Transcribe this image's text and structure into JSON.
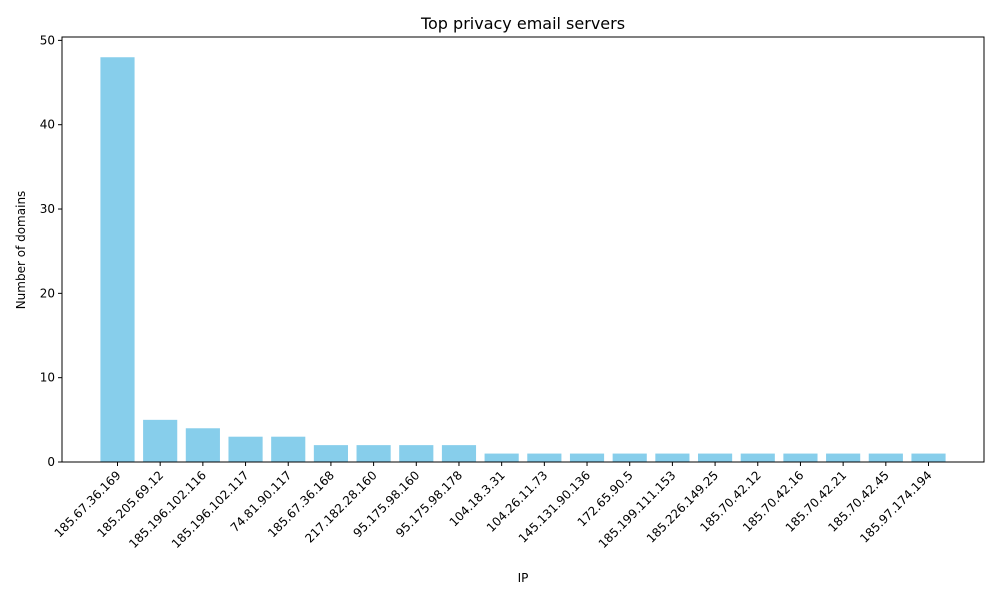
{
  "chart_data": {
    "type": "bar",
    "title": "Top privacy email servers",
    "xlabel": "IP",
    "ylabel": "Number of domains",
    "categories": [
      "185.67.36.169",
      "185.205.69.12",
      "185.196.102.116",
      "185.196.102.117",
      "74.81.90.117",
      "185.67.36.168",
      "217.182.28.160",
      "95.175.98.160",
      "95.175.98.178",
      "104.18.3.31",
      "104.26.11.73",
      "145.131.90.136",
      "172.65.90.5",
      "185.199.111.153",
      "185.226.149.25",
      "185.70.42.12",
      "185.70.42.16",
      "185.70.42.21",
      "185.70.42.45",
      "185.97.174.194"
    ],
    "values": [
      48,
      5,
      4,
      3,
      3,
      2,
      2,
      2,
      2,
      1,
      1,
      1,
      1,
      1,
      1,
      1,
      1,
      1,
      1,
      1
    ],
    "ylim": [
      0,
      50.4
    ],
    "yticks": [
      0,
      10,
      20,
      30,
      40,
      50
    ],
    "bar_color": "#87ceeb",
    "grid": false,
    "legend": false
  }
}
